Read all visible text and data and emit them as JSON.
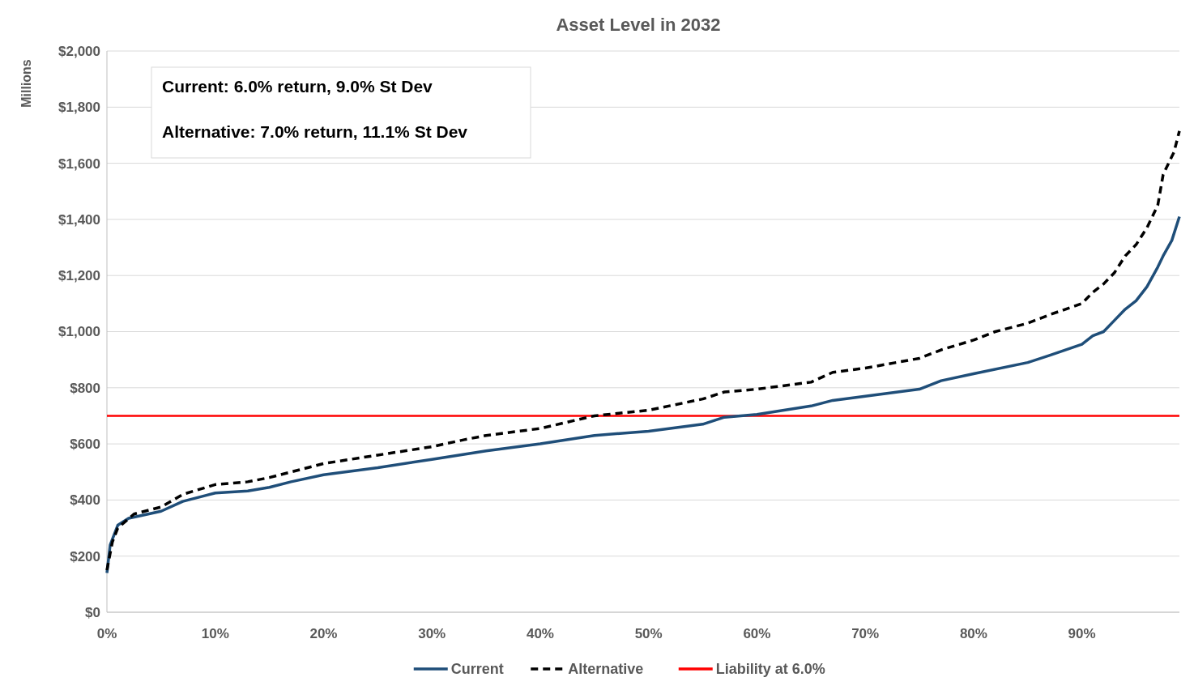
{
  "chart_data": {
    "type": "line",
    "title": "Asset Level in 2032",
    "ylabel": "Millions",
    "annotations": [
      "Current:  6.0% return, 9.0% St Dev",
      "Alternative:  7.0% return, 11.1% St Dev"
    ],
    "xlim": [
      0,
      99
    ],
    "xticks": [
      {
        "value": 0,
        "label": "0%"
      },
      {
        "value": 10,
        "label": "10%"
      },
      {
        "value": 20,
        "label": "20%"
      },
      {
        "value": 30,
        "label": "30%"
      },
      {
        "value": 40,
        "label": "40%"
      },
      {
        "value": 50,
        "label": "50%"
      },
      {
        "value": 60,
        "label": "60%"
      },
      {
        "value": 70,
        "label": "70%"
      },
      {
        "value": 80,
        "label": "80%"
      },
      {
        "value": 90,
        "label": "90%"
      }
    ],
    "ylim": [
      0,
      2000
    ],
    "yticks": [
      {
        "value": 0,
        "label": "$0"
      },
      {
        "value": 200,
        "label": "$200"
      },
      {
        "value": 400,
        "label": "$400"
      },
      {
        "value": 600,
        "label": "$600"
      },
      {
        "value": 800,
        "label": "$800"
      },
      {
        "value": 1000,
        "label": "$1,000"
      },
      {
        "value": 1200,
        "label": "$1,200"
      },
      {
        "value": 1400,
        "label": "$1,400"
      },
      {
        "value": 1600,
        "label": "$1,600"
      },
      {
        "value": 1800,
        "label": "$1,800"
      },
      {
        "value": 2000,
        "label": "$2,000"
      }
    ],
    "grid": "y",
    "legend": "bottom",
    "series": [
      {
        "name": "Current",
        "color": "#1f4e79",
        "line_style": "solid",
        "x": [
          0,
          0.3,
          1,
          2,
          5,
          7,
          10,
          13,
          15,
          17,
          20,
          25,
          30,
          35,
          40,
          45,
          50,
          55,
          57,
          60,
          65,
          67,
          70,
          75,
          77,
          80,
          85,
          87,
          90,
          91,
          92,
          93,
          94,
          95,
          96,
          97,
          97.5,
          98.3,
          99
        ],
        "values": [
          140,
          240,
          310,
          335,
          360,
          395,
          425,
          432,
          445,
          465,
          490,
          515,
          545,
          575,
          600,
          630,
          645,
          670,
          695,
          705,
          735,
          755,
          770,
          795,
          825,
          850,
          890,
          915,
          955,
          985,
          1000,
          1040,
          1080,
          1110,
          1160,
          1230,
          1270,
          1325,
          1410
        ]
      },
      {
        "name": "Alternative",
        "color": "#000000",
        "line_style": "dashed",
        "x": [
          0,
          0.5,
          1,
          2.5,
          5,
          7,
          10,
          13,
          15,
          18,
          20,
          25,
          30,
          33,
          35,
          40,
          45,
          50,
          55,
          57,
          60,
          65,
          67,
          70,
          75,
          77,
          80,
          82,
          85,
          87,
          90,
          91,
          92,
          93,
          94,
          95,
          96,
          97,
          97.5,
          98.5,
          99
        ],
        "values": [
          150,
          250,
          300,
          350,
          375,
          420,
          455,
          465,
          480,
          510,
          530,
          560,
          590,
          615,
          630,
          655,
          700,
          720,
          760,
          785,
          795,
          820,
          855,
          870,
          905,
          935,
          970,
          1000,
          1030,
          1060,
          1100,
          1140,
          1170,
          1210,
          1270,
          1310,
          1370,
          1450,
          1560,
          1640,
          1715
        ]
      }
    ],
    "ref_lines": [
      {
        "axis": "y",
        "value": 700,
        "label": "Liability at 6.0%",
        "color": "#ff0000",
        "line_style": "solid"
      }
    ]
  }
}
